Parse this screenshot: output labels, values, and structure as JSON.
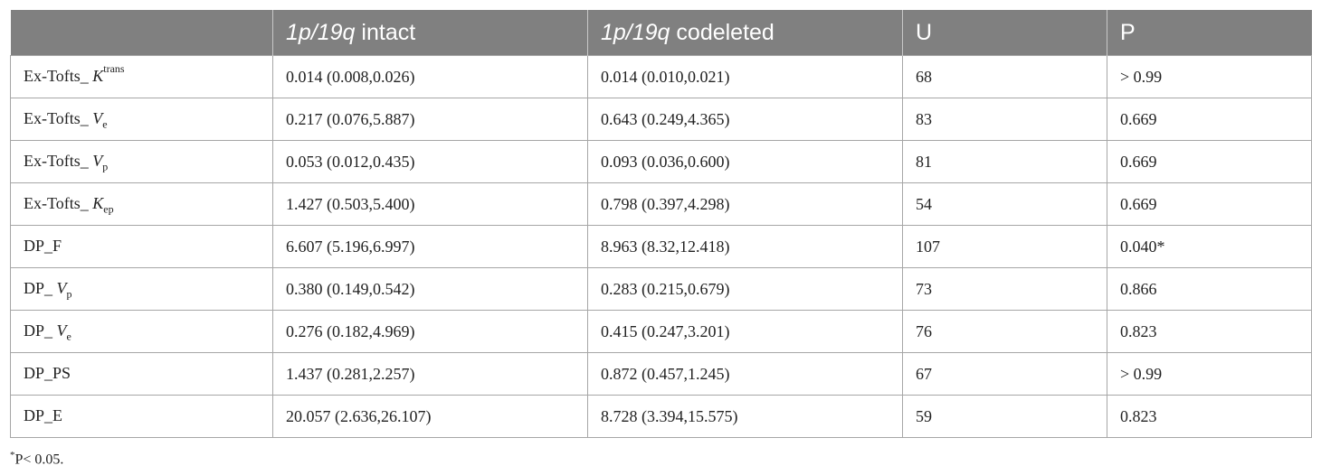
{
  "headers": [
    {
      "pre": "",
      "italic": "",
      "post": ""
    },
    {
      "pre": "",
      "italic": "1p/19q",
      "post": " intact"
    },
    {
      "pre": "",
      "italic": "1p/19q",
      "post": " codeleted"
    },
    {
      "pre": "U",
      "italic": "",
      "post": ""
    },
    {
      "pre": "P",
      "italic": "",
      "post": ""
    }
  ],
  "rows": [
    {
      "param": {
        "prefix": "Ex-Tofts_ ",
        "symbol": "K",
        "sub": "",
        "sup": "trans",
        "plain": ""
      },
      "intact": "0.014 (0.008,0.026)",
      "codeleted": "0.014 (0.010,0.021)",
      "u": "68",
      "p": "> 0.99"
    },
    {
      "param": {
        "prefix": "Ex-Tofts_ ",
        "symbol": "V",
        "sub": "e",
        "sup": "",
        "plain": ""
      },
      "intact": "0.217 (0.076,5.887)",
      "codeleted": "0.643 (0.249,4.365)",
      "u": "83",
      "p": "0.669"
    },
    {
      "param": {
        "prefix": "Ex-Tofts_ ",
        "symbol": "V",
        "sub": "p",
        "sup": "",
        "plain": ""
      },
      "intact": "0.053 (0.012,0.435)",
      "codeleted": "0.093 (0.036,0.600)",
      "u": "81",
      "p": "0.669"
    },
    {
      "param": {
        "prefix": "Ex-Tofts_ ",
        "symbol": "K",
        "sub": "ep",
        "sup": "",
        "plain": ""
      },
      "intact": "1.427 (0.503,5.400)",
      "codeleted": "0.798 (0.397,4.298)",
      "u": "54",
      "p": "0.669"
    },
    {
      "param": {
        "prefix": "DP_F",
        "symbol": "",
        "sub": "",
        "sup": "",
        "plain": ""
      },
      "intact": "6.607 (5.196,6.997)",
      "codeleted": "8.963 (8.32,12.418)",
      "u": "107",
      "p": "0.040*"
    },
    {
      "param": {
        "prefix": "DP_ ",
        "symbol": "V",
        "sub": "p",
        "sup": "",
        "plain": ""
      },
      "intact": "0.380 (0.149,0.542)",
      "codeleted": "0.283 (0.215,0.679)",
      "u": "73",
      "p": "0.866"
    },
    {
      "param": {
        "prefix": "DP_ ",
        "symbol": "V",
        "sub": "e",
        "sup": "",
        "plain": ""
      },
      "intact": "0.276 (0.182,4.969)",
      "codeleted": "0.415 (0.247,3.201)",
      "u": "76",
      "p": "0.823"
    },
    {
      "param": {
        "prefix": "DP_PS",
        "symbol": "",
        "sub": "",
        "sup": "",
        "plain": ""
      },
      "intact": "1.437 (0.281,2.257)",
      "codeleted": "0.872 (0.457,1.245)",
      "u": "67",
      "p": "> 0.99"
    },
    {
      "param": {
        "prefix": "DP_E",
        "symbol": "",
        "sub": "",
        "sup": "",
        "plain": ""
      },
      "intact": "20.057 (2.636,26.107)",
      "codeleted": "8.728 (3.394,15.575)",
      "u": "59",
      "p": "0.823"
    }
  ],
  "footnote": {
    "mark": "*",
    "text": "P< 0.05."
  }
}
